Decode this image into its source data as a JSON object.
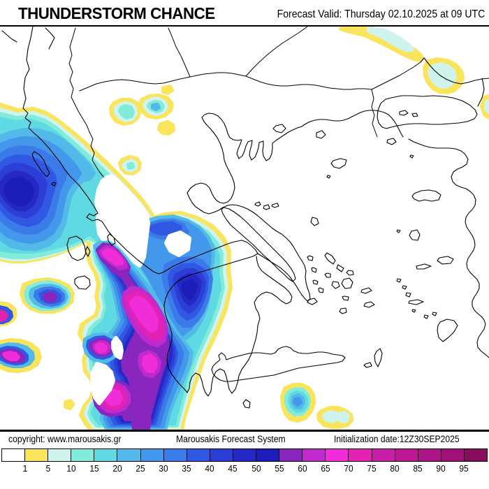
{
  "header": {
    "title": "THUNDERSTORM CHANCE",
    "forecast_label": "Forecast Valid:",
    "forecast_value": "Thursday 02.10.2025 at 09 UTC",
    "forecast_full": "Forecast Valid:  Thursday 02.10.2025 at 09 UTC"
  },
  "footer": {
    "copyright": "copyright: www.marousakis.gr",
    "system_name": "Marousakis Forecast System",
    "init_date": "Initialization date:12Z30SEP2025"
  },
  "colorbar": {
    "tick_labels": [
      "1",
      "5",
      "10",
      "15",
      "20",
      "25",
      "30",
      "35",
      "40",
      "45",
      "50",
      "55",
      "60",
      "65",
      "70",
      "75",
      "80",
      "85",
      "90",
      "95"
    ],
    "cell_colors": [
      "#FFFFFF",
      "#F9E45C",
      "#CFF4EE",
      "#82EBD9",
      "#5FD9E2",
      "#53B9E9",
      "#4498EB",
      "#3B7AE9",
      "#3158E3",
      "#2B3FD6",
      "#2628C6",
      "#1D1DBA",
      "#8826BE",
      "#C02ACC",
      "#F02DD8",
      "#E322B4",
      "#C91FA6",
      "#BE1795",
      "#AD1485",
      "#A01076",
      "#870E5C"
    ]
  }
}
